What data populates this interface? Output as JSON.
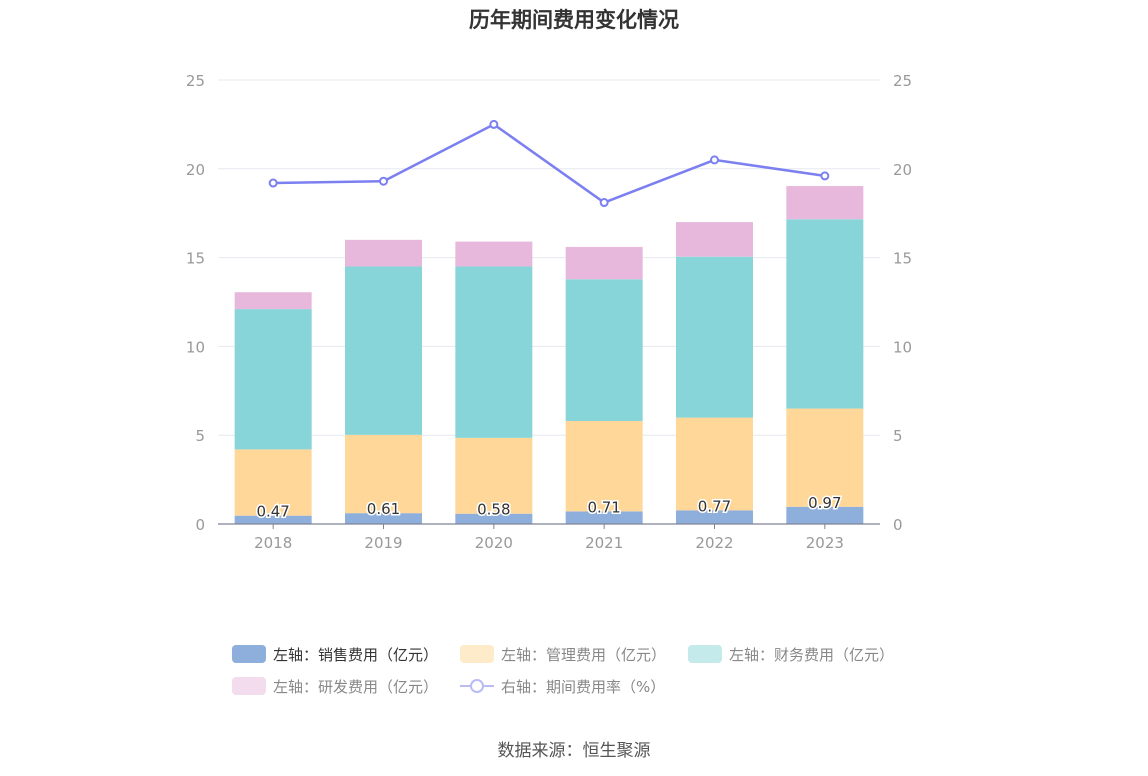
{
  "chart_data": {
    "type": "bar",
    "title": "历年期间费用变化情况",
    "categories": [
      "2018",
      "2019",
      "2020",
      "2021",
      "2022",
      "2023"
    ],
    "left_axis": {
      "ylim": [
        0,
        25
      ],
      "ticks": [
        "0",
        "5",
        "10",
        "15",
        "20",
        "25"
      ]
    },
    "right_axis": {
      "ylim": [
        0,
        25
      ],
      "ticks": [
        "0",
        "5",
        "10",
        "15",
        "20",
        "25"
      ]
    },
    "grid": true,
    "legend_position": "bottom",
    "series": [
      {
        "name": "左轴：销售费用（亿元）",
        "type": "bar",
        "stack": "total",
        "axis": "left",
        "color": "#8eaedc",
        "values": [
          0.47,
          0.61,
          0.58,
          0.71,
          0.77,
          0.97
        ],
        "data_labels": [
          "0.47",
          "0.61",
          "0.58",
          "0.71",
          "0.77",
          "0.97"
        ]
      },
      {
        "name": "左轴：管理费用（亿元）",
        "type": "bar",
        "stack": "total",
        "axis": "left",
        "color": "#ffd899",
        "values": [
          3.73,
          4.41,
          4.27,
          5.09,
          5.22,
          5.53
        ]
      },
      {
        "name": "左轴：财务费用（亿元）",
        "type": "bar",
        "stack": "total",
        "axis": "left",
        "color": "#87d5d9",
        "values": [
          7.9,
          9.48,
          9.65,
          7.98,
          9.06,
          10.66
        ]
      },
      {
        "name": "左轴：研发费用（亿元）",
        "type": "bar",
        "stack": "total",
        "axis": "left",
        "color": "#e7b8db",
        "values": [
          0.95,
          1.5,
          1.4,
          1.82,
          1.95,
          1.87
        ]
      },
      {
        "name": "右轴：期间费用率（%）",
        "type": "line",
        "axis": "right",
        "color": "#7b7ff0",
        "values": [
          19.2,
          19.3,
          22.5,
          18.1,
          20.5,
          19.6
        ]
      }
    ],
    "source": "数据来源：恒生聚源"
  }
}
